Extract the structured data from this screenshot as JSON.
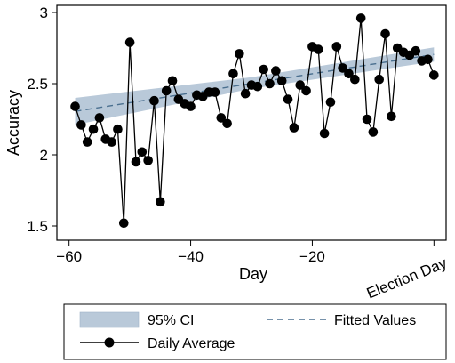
{
  "chart_data": {
    "type": "line",
    "xlabel": "Day",
    "ylabel": "Accuracy",
    "xlim": [
      -62,
      2
    ],
    "ylim": [
      1.4,
      3.05
    ],
    "x_ticks": [
      -60,
      -40,
      -20
    ],
    "x_tick_labels": [
      "−60",
      "−40",
      "−20"
    ],
    "y_ticks": [
      1.5,
      2,
      2.5,
      3
    ],
    "y_tick_labels": [
      "1.5",
      "2",
      "2.5",
      "3"
    ],
    "annotations": [
      {
        "text": "Election Day",
        "x": 0
      }
    ],
    "grid": false,
    "legend": {
      "placement": "bottom",
      "entries": [
        "95% CI",
        "Fitted Values",
        "Daily Average"
      ]
    },
    "colors": {
      "ci_fill": "#b9c9d9",
      "fitted_line": "#4a6f8f",
      "daily_line": "#000000",
      "daily_marker": "#000000"
    },
    "series": [
      {
        "name": "Daily Average",
        "x": [
          -59,
          -58,
          -57,
          -56,
          -55,
          -54,
          -53,
          -52,
          -51,
          -50,
          -49,
          -48,
          -47,
          -46,
          -45,
          -44,
          -43,
          -42,
          -41,
          -40,
          -39,
          -38,
          -37,
          -36,
          -35,
          -34,
          -33,
          -32,
          -31,
          -30,
          -29,
          -28,
          -27,
          -26,
          -25,
          -24,
          -23,
          -22,
          -21,
          -20,
          -19,
          -18,
          -17,
          -16,
          -15,
          -14,
          -13,
          -12,
          -11,
          -10,
          -9,
          -8,
          -7,
          -6,
          -5,
          -4,
          -3,
          -2,
          -1,
          0
        ],
        "y": [
          2.34,
          2.21,
          2.09,
          2.18,
          2.26,
          2.11,
          2.09,
          2.18,
          1.52,
          2.79,
          1.95,
          2.02,
          1.96,
          2.38,
          1.67,
          2.45,
          2.52,
          2.39,
          2.36,
          2.34,
          2.42,
          2.41,
          2.44,
          2.44,
          2.26,
          2.22,
          2.57,
          2.71,
          2.43,
          2.49,
          2.48,
          2.6,
          2.5,
          2.59,
          2.52,
          2.39,
          2.19,
          2.49,
          2.45,
          2.76,
          2.74,
          2.15,
          2.37,
          2.76,
          2.61,
          2.57,
          2.53,
          2.96,
          2.25,
          2.16,
          2.53,
          2.85,
          2.27,
          2.75,
          2.72,
          2.7,
          2.73,
          2.66,
          2.67,
          2.56
        ]
      },
      {
        "name": "Fitted Values",
        "x": [
          -59,
          0
        ],
        "y": [
          2.305,
          2.705
        ]
      },
      {
        "name": "95% CI",
        "x": [
          -59,
          -30,
          0
        ],
        "lower": [
          2.21,
          2.465,
          2.655
        ],
        "upper": [
          2.4,
          2.545,
          2.755
        ]
      }
    ]
  }
}
